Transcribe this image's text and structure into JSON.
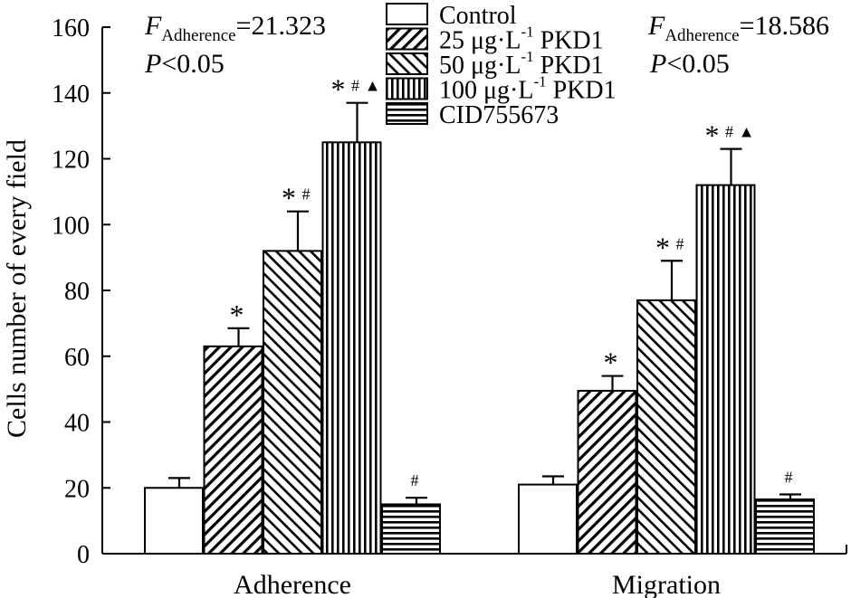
{
  "chart_data": {
    "type": "bar",
    "title": "",
    "xlabel": "",
    "ylabel": "Cells number of every field",
    "ylim": [
      0,
      160
    ],
    "yticks": [
      0,
      20,
      40,
      60,
      80,
      100,
      120,
      140,
      160
    ],
    "grid": false,
    "categories": [
      "Adherence",
      "Migration"
    ],
    "series": [
      {
        "name": "Control",
        "unit": "",
        "label_suffix": "",
        "pattern": "none",
        "values": [
          20,
          21
        ],
        "errors": [
          3,
          2.5
        ],
        "marks": [
          "",
          ""
        ]
      },
      {
        "name": "25 μg·L",
        "unit": "-1",
        "label_suffix": " PKD1",
        "pattern": "back-diag",
        "values": [
          63,
          49.5
        ],
        "errors": [
          5.5,
          4.5
        ],
        "marks": [
          "*",
          "*"
        ]
      },
      {
        "name": "50 μg·L",
        "unit": "-1",
        "label_suffix": " PKD1",
        "pattern": "fwd-diag",
        "values": [
          92,
          77
        ],
        "errors": [
          12,
          12
        ],
        "marks": [
          "*#",
          "*#"
        ]
      },
      {
        "name": "100 μg·L",
        "unit": "-1",
        "label_suffix": " PKD1",
        "pattern": "vertical",
        "values": [
          125,
          112
        ],
        "errors": [
          12,
          11
        ],
        "marks": [
          "*#▲",
          "*#▲"
        ]
      },
      {
        "name": "CID755673",
        "unit": "",
        "label_suffix": "",
        "pattern": "horizontal",
        "values": [
          15,
          16.5
        ],
        "errors": [
          2,
          1.5
        ],
        "marks": [
          "#",
          "#"
        ]
      }
    ],
    "stats": [
      {
        "f_symbol": "F",
        "f_sub": "Adherence",
        "f_value": "=21.323",
        "p_symbol": "P",
        "p_value": "<0.05"
      },
      {
        "f_symbol": "F",
        "f_sub": "Adherence",
        "f_value": "=18.586",
        "p_symbol": "P",
        "p_value": "<0.05"
      }
    ],
    "legend_position": "top-center"
  }
}
